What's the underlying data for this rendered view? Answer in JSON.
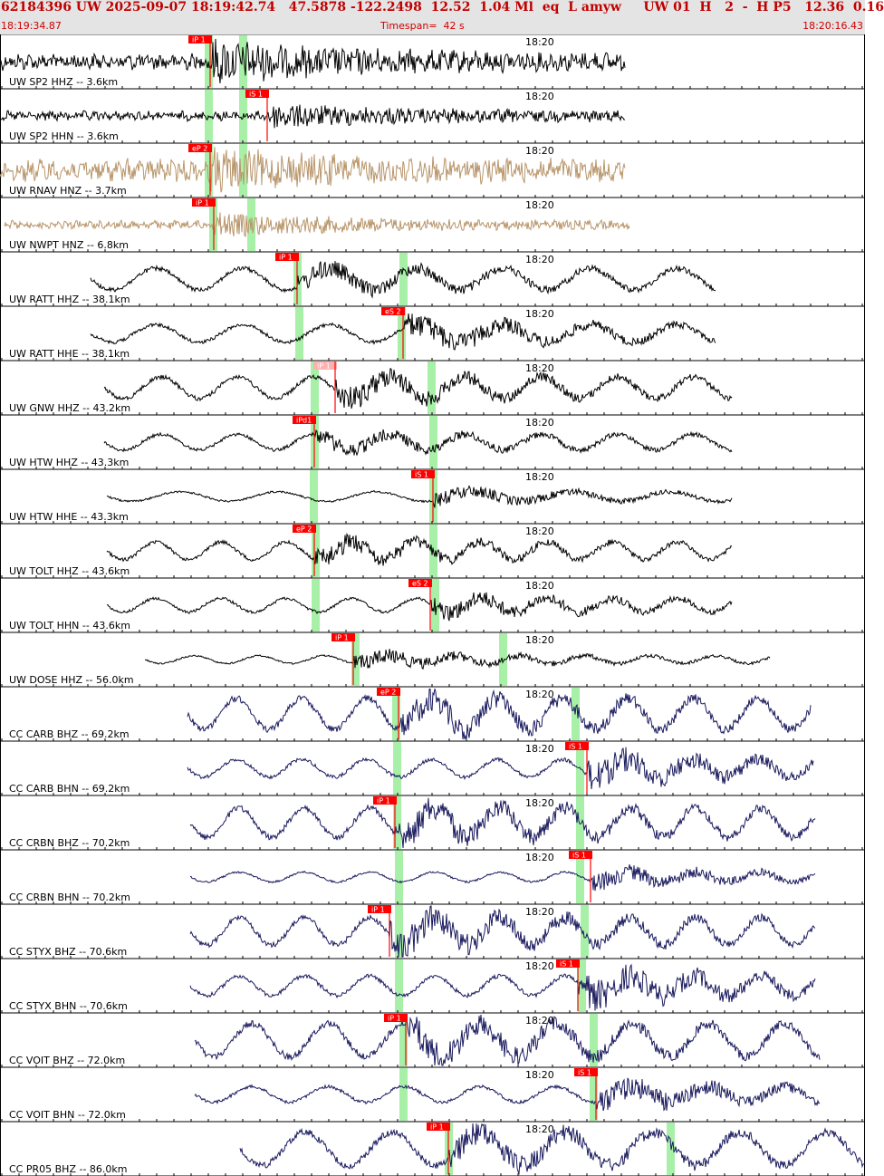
{
  "header": {
    "title": "62184396 UW 2025-09-07 18:19:42.74   47.5878 -122.2498  12.52  1.04 Ml  eq  L amyw     UW 01  H   2  -  H P5   12.36  0.16",
    "start_time": "18:19:34.87",
    "timespan": "Timespan=  42 s",
    "end_time": "18:20:16.43"
  },
  "colors": {
    "uw_trace": "#000000",
    "uw_strong_motion_trace": "#b8956a",
    "cc_trace": "#1a1a5e",
    "pick_flag": "#ff0000",
    "pick_flag_light": "#ffb0b0",
    "window_band": "#a8f0a8",
    "grid": "#000000"
  },
  "time_marker_label": "18:20",
  "traces": [
    {
      "label": "UW SP2 HHZ -- 3.6km",
      "network": "UW",
      "color_key": "uw_trace",
      "amp": 0.6,
      "period": 1.0,
      "pick": {
        "label": "iP 1",
        "kind": "P"
      },
      "burst": 1.0
    },
    {
      "label": "UW SP2 HHN -- 3.6km",
      "network": "UW",
      "color_key": "uw_trace",
      "amp": 0.35,
      "period": 1.0,
      "pick": {
        "label": "iS 1",
        "kind": "S"
      },
      "burst": 1.0
    },
    {
      "label": "UW RNAV HNZ -- 3.7km",
      "network": "UW",
      "color_key": "uw_strong_motion_trace",
      "amp": 0.8,
      "period": 1.0,
      "pick": {
        "label": "eP 2",
        "kind": "P"
      },
      "burst": 0.6
    },
    {
      "label": "UW NWPT HNZ -- 6.8km",
      "network": "UW",
      "color_key": "uw_strong_motion_trace",
      "amp": 0.3,
      "period": 1.0,
      "pick": {
        "label": "iP 1",
        "kind": "P"
      },
      "burst": 1.2
    },
    {
      "label": "UW RATT HHZ -- 38.1km",
      "network": "UW",
      "color_key": "uw_trace",
      "amp": 0.55,
      "period": 8.0,
      "pick": {
        "label": "iP 1",
        "kind": "P"
      },
      "burst": 0.6
    },
    {
      "label": "UW RATT HHE -- 38.1km",
      "network": "UW",
      "color_key": "uw_trace",
      "amp": 0.45,
      "period": 8.0,
      "pick": {
        "label": "eS 2",
        "kind": "S"
      },
      "burst": 1.0
    },
    {
      "label": "UW GNW HHZ -- 43.2km",
      "network": "UW",
      "color_key": "uw_trace",
      "amp": 0.55,
      "period": 7.0,
      "pick": {
        "label": "iP 1",
        "kind": "P",
        "light": true
      },
      "burst": 0.8
    },
    {
      "label": "UW HTW HHZ -- 43.3km",
      "network": "UW",
      "color_key": "uw_trace",
      "amp": 0.4,
      "period": 7.0,
      "pick": {
        "label": "iPd1",
        "kind": "P"
      },
      "burst": 0.7
    },
    {
      "label": "UW HTW HHE -- 43.3km",
      "network": "UW",
      "color_key": "uw_trace",
      "amp": 0.25,
      "period": 9.0,
      "pick": {
        "label": "iS 1",
        "kind": "S"
      },
      "burst": 1.0
    },
    {
      "label": "UW TOLT HHZ -- 43.6km",
      "network": "UW",
      "color_key": "uw_trace",
      "amp": 0.45,
      "period": 6.0,
      "pick": {
        "label": "eP 2",
        "kind": "P"
      },
      "burst": 0.8
    },
    {
      "label": "UW TOLT HHN -- 43.6km",
      "network": "UW",
      "color_key": "uw_trace",
      "amp": 0.35,
      "period": 6.0,
      "pick": {
        "label": "eS 2",
        "kind": "S"
      },
      "burst": 1.0
    },
    {
      "label": "UW DOSE HHZ -- 56.0km",
      "network": "UW",
      "color_key": "uw_trace",
      "amp": 0.2,
      "period": 6.0,
      "pick": {
        "label": "iP 1",
        "kind": "P"
      },
      "burst": 1.5
    },
    {
      "label": "CC CARB BHZ -- 69.2km",
      "network": "CC",
      "color_key": "cc_trace",
      "amp": 0.8,
      "period": 6.0,
      "pick": {
        "label": "eP 2",
        "kind": "P"
      },
      "burst": 0.6
    },
    {
      "label": "CC CARB BHN -- 69.2km",
      "network": "CC",
      "color_key": "cc_trace",
      "amp": 0.45,
      "period": 6.0,
      "pick": {
        "label": "iS 1",
        "kind": "S"
      },
      "burst": 1.2
    },
    {
      "label": "CC CRBN BHZ -- 70.2km",
      "network": "CC",
      "color_key": "cc_trace",
      "amp": 0.75,
      "period": 6.0,
      "pick": {
        "label": "iP 1",
        "kind": "P"
      },
      "burst": 0.7
    },
    {
      "label": "CC CRBN BHN -- 70.2km",
      "network": "CC",
      "color_key": "cc_trace",
      "amp": 0.25,
      "period": 6.0,
      "pick": {
        "label": "iS 1",
        "kind": "S"
      },
      "burst": 1.4
    },
    {
      "label": "CC STYX BHZ -- 70.6km",
      "network": "CC",
      "color_key": "cc_trace",
      "amp": 0.7,
      "period": 6.0,
      "pick": {
        "label": "iP 1",
        "kind": "P"
      },
      "burst": 0.8
    },
    {
      "label": "CC STYX BHN -- 70.6km",
      "network": "CC",
      "color_key": "cc_trace",
      "amp": 0.5,
      "period": 6.0,
      "pick": {
        "label": "iS 1",
        "kind": "S"
      },
      "burst": 1.2
    },
    {
      "label": "CC VOIT BHZ -- 72.0km",
      "network": "CC",
      "color_key": "cc_trace",
      "amp": 0.85,
      "period": 7.0,
      "pick": {
        "label": "iP 1",
        "kind": "P"
      },
      "burst": 0.6
    },
    {
      "label": "CC VOIT BHN -- 72.0km",
      "network": "CC",
      "color_key": "cc_trace",
      "amp": 0.4,
      "period": 7.0,
      "pick": {
        "label": "iS 1",
        "kind": "S"
      },
      "burst": 1.2
    },
    {
      "label": "CC PR05 BHZ -- 86.0km",
      "network": "CC",
      "color_key": "cc_trace",
      "amp": 0.85,
      "period": 8.0,
      "pick": {
        "label": "iP 1",
        "kind": "P"
      },
      "burst": 0.5
    }
  ]
}
